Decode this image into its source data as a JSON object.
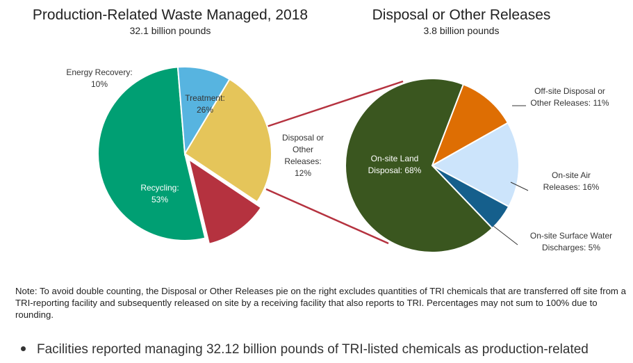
{
  "chart_data": [
    {
      "type": "pie",
      "title": "Production-Related Waste Managed, 2018",
      "subtitle": "32.1 billion pounds",
      "slices": [
        {
          "name": "Treatment:",
          "value": 26,
          "value_label": "26%",
          "color": "#e5c55a",
          "label_color": "#333333"
        },
        {
          "name": "Disposal or Other Releases:",
          "value": 12,
          "value_label": "12%",
          "color": "#b5323f",
          "label_color": "#333333",
          "exploded": true
        },
        {
          "name": "Recycling:",
          "value": 53,
          "value_label": "53%",
          "color": "#009f73",
          "label_color": "#ffffff"
        },
        {
          "name": "Energy Recovery:",
          "value": 10,
          "value_label": "10%",
          "color": "#57b4e0",
          "label_color": "#333333"
        }
      ]
    },
    {
      "type": "pie",
      "title": "Disposal or Other Releases",
      "subtitle": "3.8 billion pounds",
      "slices": [
        {
          "name": "Off-site Disposal or Other Releases:",
          "value": 11,
          "value_label": "11%",
          "color": "#de6e03",
          "label_color": "#333333"
        },
        {
          "name": "On-site Air Releases:",
          "value": 16,
          "value_label": "16%",
          "color": "#cce4fb",
          "label_color": "#333333"
        },
        {
          "name": "On-site Surface Water Discharges:",
          "value": 5,
          "value_label": "5%",
          "color": "#155f8c",
          "label_color": "#333333"
        },
        {
          "name": "On-site Land Disposal:",
          "value": 68,
          "value_label": "68%",
          "color": "#3a561f",
          "label_color": "#ffffff"
        }
      ]
    }
  ],
  "connector_color": "#b5323f",
  "note": "Note: To avoid double counting, the Disposal or Other Releases pie on the right excludes quantities of TRI chemicals that are transferred off site from a TRI-reporting facility and subsequently released on site by a receiving facility that also reports to TRI. Percentages may not sum to 100% due to rounding.",
  "bullet_text": "Facilities reported managing 32.12 billion pounds of TRI-listed chemicals as production-related"
}
